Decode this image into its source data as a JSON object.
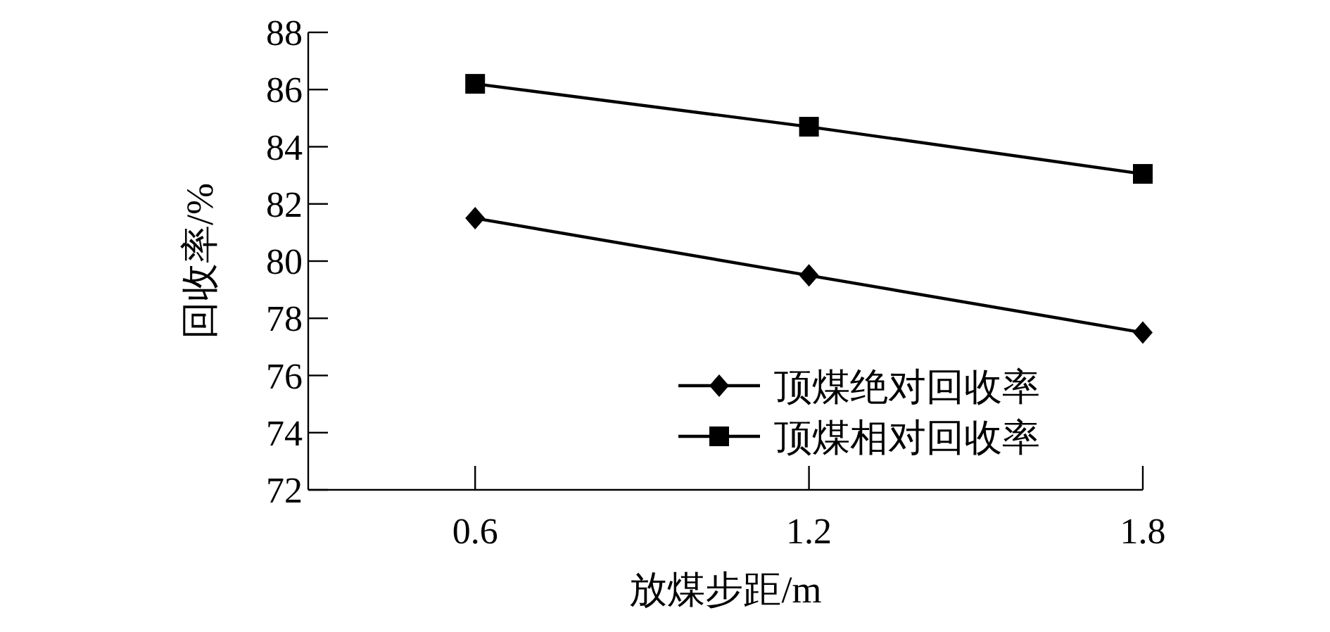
{
  "chart_data": {
    "type": "line",
    "xlabel": "放煤步距/m",
    "ylabel": "回收率/%",
    "x": [
      0.6,
      1.2,
      1.8
    ],
    "series": [
      {
        "name": "顶煤绝对回收率",
        "color": "#000000",
        "marker": "diamond",
        "values": [
          81.5,
          79.5,
          77.5
        ]
      },
      {
        "name": "顶煤相对回收率",
        "color": "#000000",
        "marker": "square",
        "values": [
          86.2,
          84.7,
          83.05
        ]
      }
    ],
    "xlim": [
      0.3,
      1.8
    ],
    "xticks": [
      0.6,
      1.2,
      1.8
    ],
    "ylim": [
      72,
      88
    ],
    "yticks": [
      72,
      74,
      76,
      78,
      80,
      82,
      84,
      86,
      88
    ],
    "grid": false,
    "legend": "bottom right",
    "line_style": "solid"
  }
}
